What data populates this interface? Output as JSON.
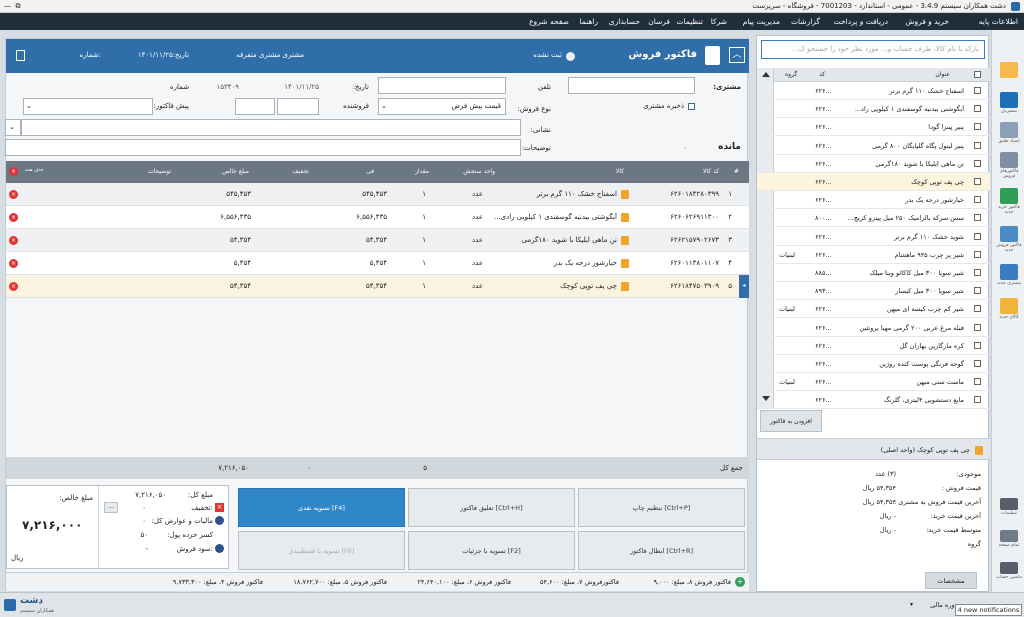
{
  "titlebar": {
    "title": "دشت همکاران سیستم 3.4.9 - عمومی - استاندارد - 7001203 - فروشگاه - سرپرست"
  },
  "menu": [
    "اطلاعات پایه",
    "خرید و فروش",
    "دریافت و پرداخت",
    "گزارشات",
    "مدیریت پیام",
    "شرکا",
    "تنظیمات",
    "فرسان",
    "حسابداری",
    "راهنما",
    "صفحه شروع"
  ],
  "sidebar": [
    {
      "label": "",
      "color": "#f6b94a"
    },
    {
      "label": "مشتریان",
      "color": "#1c6fb8"
    },
    {
      "label": "اسناد تعلیق",
      "color": "#8aa0b6"
    },
    {
      "label": "فاکتورهای فروش",
      "color": "#7d90a4"
    },
    {
      "label": "فاکتور خرید جدید",
      "color": "#2f9e57"
    },
    {
      "label": "فاکتور فروش جدید",
      "color": "#4a8bc4"
    },
    {
      "label": "مشتری جدید",
      "color": "#3a7cc0"
    },
    {
      "label": "کالای جدید",
      "color": "#f0b43a"
    }
  ],
  "sidebar_bottom": [
    {
      "label": "تنظیمات"
    },
    {
      "label": "تمام صفحه"
    },
    {
      "label": "ماشین حساب"
    }
  ],
  "search": {
    "placeholder": "بارکد یا نام کالا، طرف حساب و... مورد نظر خود را جستجو ک..."
  },
  "product_list": {
    "headers": {
      "title": "عنوان",
      "code": "کد",
      "group": "گروه"
    },
    "items": [
      {
        "title": "اسفناج خشک ۱۱۰ گرم برتر",
        "code": "...۶۲۶",
        "group": ""
      },
      {
        "title": "آبگوشتی بیدنیه گوسفندی ۱ کیلویی راد...",
        "code": "...۶۲۶",
        "group": ""
      },
      {
        "title": "پنیر پیتزا گودا",
        "code": "...۶۲۶",
        "group": ""
      },
      {
        "title": "پنیر لبنول پگاه گلپایگان ۸۰۰ گرمی",
        "code": "...۶۲۶",
        "group": ""
      },
      {
        "title": "تن ماهی ایلیکا با شوید ۱۸۰گرمی",
        "code": "...۶۲۶",
        "group": ""
      },
      {
        "title": "چی پف توپی کوچک",
        "code": "...۶۲۶",
        "group": ""
      },
      {
        "title": "خیارشور درجه یک بدر",
        "code": "...۶۲۶",
        "group": ""
      },
      {
        "title": "سس سرکه بالزامیک ۲۵۰ میل پیترو کریچ...",
        "code": "...۸۰۰",
        "group": ""
      },
      {
        "title": "شوید خشک ۱۱۰ گرم برتر",
        "code": "...۶۲۶",
        "group": ""
      },
      {
        "title": "شیر پر چرب ۹۴۵ ماهشام",
        "code": "...۶۲۶",
        "group": "لبنیات"
      },
      {
        "title": "شیر سویا ۳۰۰ میل کاکائو وینا میلک",
        "code": "...۸۸۵",
        "group": ""
      },
      {
        "title": "شیر سویا ۳۰۰ میل کیسار",
        "code": "...۸۹۳",
        "group": ""
      },
      {
        "title": "شیر کم چرب کیسه ای میهن",
        "code": "...۶۲۶",
        "group": "لبنیات"
      },
      {
        "title": "فیله مرغ عربی ۲۰۰ گرمی مهیا پروتئین",
        "code": "...۶۲۶",
        "group": ""
      },
      {
        "title": "کره مارگارین بهاران گل",
        "code": "...۶۲۶",
        "group": ""
      },
      {
        "title": "گوجه فرنگی پوست کنده روژین",
        "code": "...۶۲۶",
        "group": ""
      },
      {
        "title": "ماست ستی میهن",
        "code": "...۶۲۶",
        "group": "لبنیات"
      },
      {
        "title": "مایع دستشویی ۴لیتری، گلرنگ",
        "code": "...۶۲۶",
        "group": ""
      }
    ],
    "add_button": "افزودن به فاکتور"
  },
  "product_detail": {
    "title": "چی پف توپی کوچک (واحد اصلی)",
    "rows": [
      {
        "label": "موجودی:",
        "value": "(۳) عدد"
      },
      {
        "label": "قیمت فروش :",
        "value": "۵۴,۳۵۴ ریال"
      },
      {
        "label": "آخرین قیمت فروش به مشتری :",
        "value": "۵۴,۳۵۴ ریال"
      },
      {
        "label": "آخرین قیمت خرید:",
        "value": "- ریال"
      },
      {
        "label": "متوسط قیمت خرید:",
        "value": "- ریال"
      },
      {
        "label": "گروه",
        "value": ""
      }
    ],
    "specs_button": "مشخصات"
  },
  "invoice": {
    "title": "فاکتور فروش",
    "registered_label": "ثبت نشده",
    "customer_name": "مشتری مشتری متفرقه",
    "date_label": "تاریخ:۱۴۰۱/۱۱/۲۵",
    "number_label": "شماره:",
    "customer_label": "مشتری:",
    "phone_label": "تلفن",
    "date_field_label": "تاریخ:",
    "date_value": "۱۴۰۱/۱۱/۲۵",
    "number_field_label": "شماره",
    "number_value": "۱۵۳۴۰۹",
    "save_customer": "ذخیره مشتری",
    "sale_type_label": "نوع فروش:",
    "sale_type_value": "قیمت پیش فرض",
    "seller_label": "فروشنده",
    "preinvoice_label": "پیش فاکتور:",
    "address_label": "نشانی:",
    "description_label": "توضیحات:",
    "balance_label": "مانده",
    "balance_value": "۰"
  },
  "grid": {
    "headers": {
      "row": "#",
      "code": "کد کالا",
      "item": "کالا",
      "unit": "واحد سنجش",
      "qty": "مقدار",
      "fee": "فی",
      "discount": "تخفیف",
      "net": "مبلغ خالص",
      "desc": "توضیحات",
      "delete": "حذف همه"
    },
    "rows": [
      {
        "row": "۱",
        "code": "۶۲۶۰۱۸۴۲۸۰۳۹۹",
        "item": "اسفناج خشک ۱۱۰ گرم برتر",
        "unit": "عدد",
        "qty": "۱",
        "fee": "۵۴۵,۴۵۳",
        "net": "۵۴۵,۴۵۳"
      },
      {
        "row": "۲",
        "code": "۶۲۶۰۶۲۶۹۱۱۳۰۰",
        "item": "آبگوشتی بیدنیه گوسفندی ۱ کیلویی رادی...",
        "unit": "عدد",
        "qty": "۱",
        "fee": "۶,۵۵۶,۴۳۵",
        "net": "۶,۵۵۶,۴۳۵"
      },
      {
        "row": "۳",
        "code": "۶۲۶۲۱۵۷۹۰۲۶۷۳",
        "item": "تن ماهی ایلیکا با شوید ۱۸۰گرمی",
        "unit": "عدد",
        "qty": "۱",
        "fee": "۵۴,۳۵۴",
        "net": "۵۴,۳۵۴"
      },
      {
        "row": "۴",
        "code": "۶۲۶۰۱۱۳۸۰۱۱۰۷",
        "item": "خیارشور درجه یک بدر",
        "unit": "عدد",
        "qty": "۱",
        "fee": "۵,۴۵۴",
        "net": "۵,۴۵۴"
      },
      {
        "row": "۵",
        "code": "۶۲۶۱۸۴۷۵۰۳۹۰۹",
        "item": "چی پف توپی کوچک",
        "unit": "عدد",
        "qty": "۱",
        "fee": "۵۴,۳۵۴",
        "net": "۵۴,۳۵۴"
      }
    ]
  },
  "totals": {
    "label": "جمع کل",
    "count": "۵",
    "discount": "۰",
    "net": "۷,۲۱۶,۰۵۰"
  },
  "buttons": {
    "print": "تنظیم چاپ [Ctrl+P]",
    "suspend": "تعلیق فاکتور [Ctrl+H]",
    "cash": "تسویه نقدی [F4]",
    "cancel": "ابطال فاکتور [Ctrl+R]",
    "detail": "تسویه با جزئیات [F2]",
    "installment": "تسویه با قسطبندی [F6]"
  },
  "summary": {
    "amount_label": "مبلغ کل:",
    "amount_value": "۷,۲۱۶,۰۵۰",
    "discount_label": "تخفیف:",
    "discount_value": "۰",
    "tax_label": "مالیات و عوارض کل:",
    "tax_value": "۰",
    "round_label": "کسر خرده پول:",
    "round_value": "۵۰",
    "profit_label": "سود فروش:",
    "profit_value": "-",
    "net_label": "مبلغ خالص:",
    "net_value": "۷,۲۱۶,۰۰۰",
    "currency": "ریال"
  },
  "bottom_tabs": [
    "فاکتور فروش ۸، مبلغ: ۹,۰۰۰",
    "فاکتورفروش ۷، مبلغ: ۵۴,۶۰۰",
    "فاکتور فروش ۶، مبلغ: ۲۴,۶۴۰,۱۰۰",
    "فاکتور فروش ۵، مبلغ: ۱۸,۷۶۲,۷۰۰",
    "فاکتور فروش ۴، مبلغ: ۹,۷۳۳,۳۰۰"
  ],
  "status": {
    "logo_main": "دشت",
    "logo_sub": "همکاران سیستم",
    "fiscal_year": "دوره مالی",
    "notifications": "4 new notifications"
  }
}
